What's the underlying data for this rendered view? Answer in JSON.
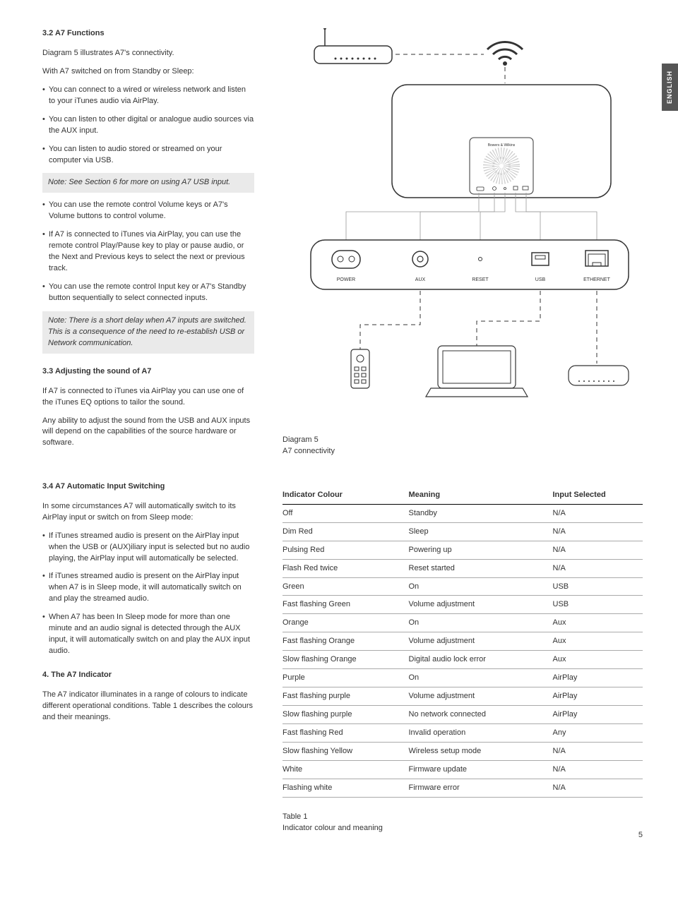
{
  "lang_tab": "ENGLISH",
  "page_number": "5",
  "s32": {
    "heading": "3.2 A7 Functions",
    "intro": "Diagram 5 illustrates A7's connectivity.",
    "lead": "With A7 switched on from Standby or Sleep:",
    "b1": "You can connect to a wired or wireless network and listen to your iTunes audio via AirPlay.",
    "b2": "You can listen to other digital or analogue audio sources via the AUX input.",
    "b3": "You can listen to audio stored or streamed on your computer via USB.",
    "note1": "Note: See Section 6 for more on using A7 USB input.",
    "b4": "You can use the remote control Volume keys or A7's Volume buttons to control volume.",
    "b5": "If A7 is connected to iTunes via AirPlay, you can use the remote control Play/Pause key to play or pause audio, or the Next and Previous keys to select the next or previous track.",
    "b6": "You can use the remote control Input key or A7's Standby button sequentially to select connected inputs.",
    "note2": "Note: There is a short delay when A7 inputs are switched. This is a consequence of the need to re-establish USB or Network communication."
  },
  "s33": {
    "heading": "3.3 Adjusting the sound of A7",
    "p1": "If A7 is connected to iTunes via AirPlay you can use one of the iTunes EQ options to tailor the sound.",
    "p2": "Any ability to adjust the sound from the USB and AUX inputs will depend on the capabilities of the source hardware or software."
  },
  "s34": {
    "heading": "3.4 A7 Automatic Input Switching",
    "p1": "In some circumstances A7 will automatically switch to its AirPlay input or switch on from Sleep mode:",
    "b1": "If iTunes streamed audio is present on the AirPlay input when the USB or (AUX)iliary input is selected but no audio playing, the AirPlay input will automatically be selected.",
    "b2": "If iTunes streamed audio is present on the AirPlay input when A7 is in Sleep mode, it will automatically switch on and play the streamed audio.",
    "b3": "When A7 has been In Sleep mode for more than one minute  and an audio signal is detected through the AUX input, it will automatically switch on and play the AUX input audio."
  },
  "s4": {
    "heading": "4. The A7 Indicator",
    "p1": "The A7 indicator illuminates in a range of colours to indicate different operational conditions. Table 1 describes the colours and their meanings."
  },
  "diagram": {
    "caption_l1": "Diagram 5",
    "caption_l2": "A7 connectivity",
    "ports": {
      "power": "POWER",
      "aux": "AUX",
      "reset": "RESET",
      "usb": "USB",
      "eth": "ETHERNET"
    },
    "brand": "Bowers & Wilkins"
  },
  "table": {
    "caption_l1": "Table 1",
    "caption_l2": "Indicator colour and meaning",
    "headers": {
      "c1": "Indicator Colour",
      "c2": "Meaning",
      "c3": "Input Selected"
    },
    "rows": [
      {
        "c1": "Off",
        "c2": "Standby",
        "c3": "N/A"
      },
      {
        "c1": "Dim Red",
        "c2": "Sleep",
        "c3": "N/A"
      },
      {
        "c1": "Pulsing Red",
        "c2": "Powering up",
        "c3": "N/A"
      },
      {
        "c1": "Flash Red twice",
        "c2": "Reset started",
        "c3": "N/A"
      },
      {
        "c1": "Green",
        "c2": "On",
        "c3": "USB"
      },
      {
        "c1": "Fast flashing Green",
        "c2": "Volume adjustment",
        "c3": "USB"
      },
      {
        "c1": "Orange",
        "c2": "On",
        "c3": "Aux"
      },
      {
        "c1": "Fast flashing Orange",
        "c2": "Volume adjustment",
        "c3": "Aux"
      },
      {
        "c1": "Slow flashing Orange",
        "c2": "Digital audio lock error",
        "c3": "Aux"
      },
      {
        "c1": "Purple",
        "c2": "On",
        "c3": "AirPlay"
      },
      {
        "c1": "Fast flashing purple",
        "c2": "Volume adjustment",
        "c3": "AirPlay"
      },
      {
        "c1": "Slow flashing purple",
        "c2": "No network connected",
        "c3": "AirPlay"
      },
      {
        "c1": "Fast flashing Red",
        "c2": "Invalid operation",
        "c3": "Any"
      },
      {
        "c1": "Slow flashing Yellow",
        "c2": "Wireless setup mode",
        "c3": "N/A"
      },
      {
        "c1": "White",
        "c2": "Firmware update",
        "c3": "N/A"
      },
      {
        "c1": "Flashing white",
        "c2": "Firmware error",
        "c3": "N/A"
      }
    ]
  }
}
